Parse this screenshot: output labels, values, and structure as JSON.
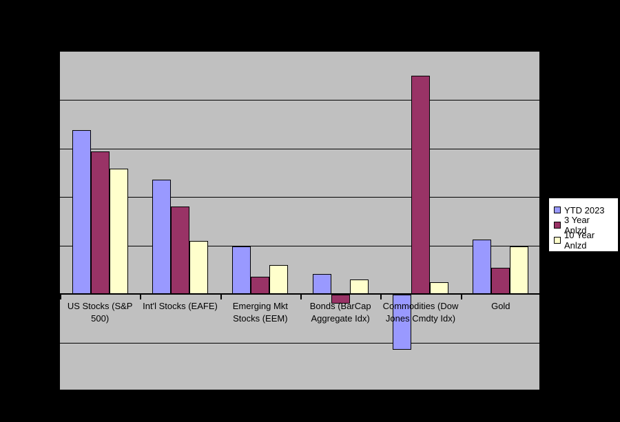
{
  "chart": {
    "background": "#000000",
    "plot_bg": "#C0C0C0",
    "gridline_color": "#000000",
    "axis_color": "#000000",
    "legend_bg": "#FFFFFF",
    "legend_border": "#000000",
    "text_color": "#000000"
  },
  "chart_data": {
    "type": "bar",
    "title": "",
    "xlabel": "",
    "ylabel": "",
    "categories": [
      "US Stocks (S&P 500)",
      "Int'l Stocks (EAFE)",
      "Emerging Mkt Stocks (EEM)",
      "Bonds (BarCap Aggregate Idx)",
      "Commodities (Dow Jones Cmdty Idx)",
      "Gold"
    ],
    "tick_label_lines": [
      [
        "US Stocks (S&P",
        "500)"
      ],
      [
        "Int'l Stocks (EAFE)"
      ],
      [
        "Emerging Mkt",
        "Stocks (EEM)"
      ],
      [
        "Bonds (BarCap",
        "Aggregate Idx)"
      ],
      [
        "Commodities (Dow",
        "Jones Cmdty Idx)"
      ],
      [
        "Gold"
      ]
    ],
    "series": [
      {
        "name": "YTD 2023",
        "color": "#9999FF",
        "values": [
          16.9,
          11.8,
          4.9,
          2.1,
          -5.7,
          5.6
        ]
      },
      {
        "name": "3 Year Anlzd",
        "color": "#993366",
        "values": [
          14.7,
          9.0,
          1.8,
          -0.9,
          22.5,
          2.7
        ]
      },
      {
        "name": "10 Year Anlzd",
        "color": "#FFFFCC",
        "values": [
          12.9,
          5.5,
          3.0,
          1.5,
          1.2,
          4.9
        ]
      }
    ],
    "ylim": [
      -10,
      25
    ],
    "grid_step": 5,
    "grid": true,
    "y_tick_labels_visible": false,
    "legend_position": "right"
  }
}
